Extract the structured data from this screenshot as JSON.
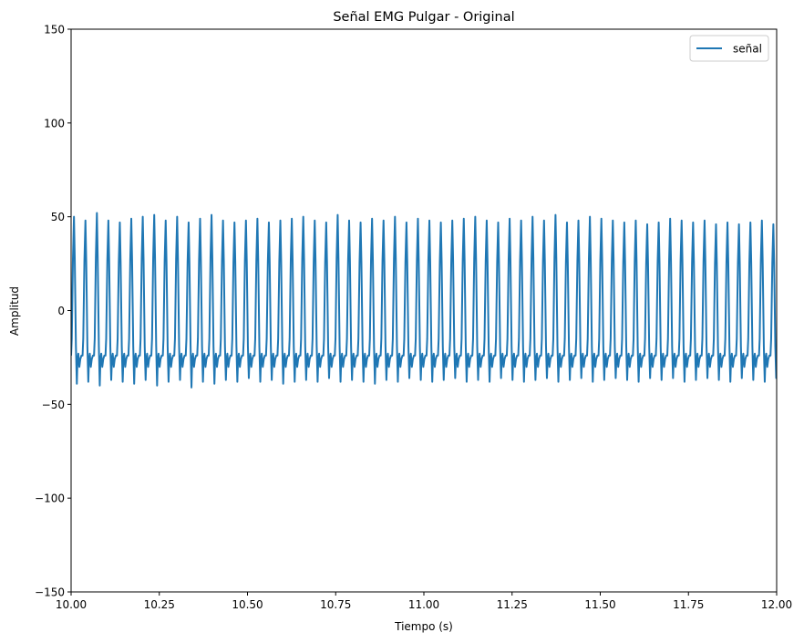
{
  "chart_data": {
    "type": "line",
    "title": "Señal EMG Pulgar - Original",
    "xlabel": "Tiempo (s)",
    "ylabel": "Amplitud",
    "xlim": [
      10.0,
      12.0
    ],
    "ylim": [
      -150,
      150
    ],
    "xticks": [
      10.0,
      10.25,
      10.5,
      10.75,
      11.0,
      11.25,
      11.5,
      11.75,
      12.0
    ],
    "xtick_labels": [
      "10.00",
      "10.25",
      "10.50",
      "10.75",
      "11.00",
      "11.25",
      "11.50",
      "11.75",
      "12.00"
    ],
    "yticks": [
      -150,
      -100,
      -50,
      0,
      50,
      100,
      150
    ],
    "ytick_labels": [
      "−150",
      "−100",
      "−50",
      "0",
      "50",
      "100",
      "150"
    ],
    "grid": false,
    "legend_position": "upper right",
    "series": [
      {
        "name": "señal",
        "color": "#1f77b4",
        "waveform": {
          "kind": "periodic_pulse_train",
          "period_s": 0.0325,
          "t_start": 10.0,
          "t_end": 12.0,
          "peak_values": [
            50,
            48,
            52,
            48,
            47,
            49,
            50,
            51,
            48,
            50,
            47,
            49,
            51,
            48,
            47,
            48,
            49,
            47,
            48,
            49,
            50,
            48,
            47,
            51,
            48,
            47,
            49,
            48,
            50,
            47,
            49,
            48,
            47,
            48,
            49,
            50,
            48,
            47,
            49,
            48,
            50,
            48,
            51,
            47,
            48,
            50,
            49,
            48,
            47,
            48,
            46,
            47,
            49,
            48,
            47,
            48,
            46,
            47,
            46,
            47,
            48,
            46
          ],
          "trough_values": [
            -39,
            -38,
            -40,
            -37,
            -38,
            -39,
            -37,
            -40,
            -38,
            -37,
            -41,
            -38,
            -39,
            -37,
            -38,
            -36,
            -38,
            -37,
            -39,
            -38,
            -37,
            -38,
            -36,
            -38,
            -37,
            -38,
            -39,
            -37,
            -38,
            -36,
            -37,
            -38,
            -37,
            -36,
            -38,
            -37,
            -38,
            -36,
            -37,
            -38,
            -37,
            -36,
            -38,
            -37,
            -36,
            -38,
            -37,
            -36,
            -37,
            -38,
            -36,
            -37,
            -36,
            -38,
            -37,
            -36,
            -37,
            -38,
            -36,
            -37,
            -38,
            -36
          ],
          "baseline": -25
        }
      }
    ]
  }
}
